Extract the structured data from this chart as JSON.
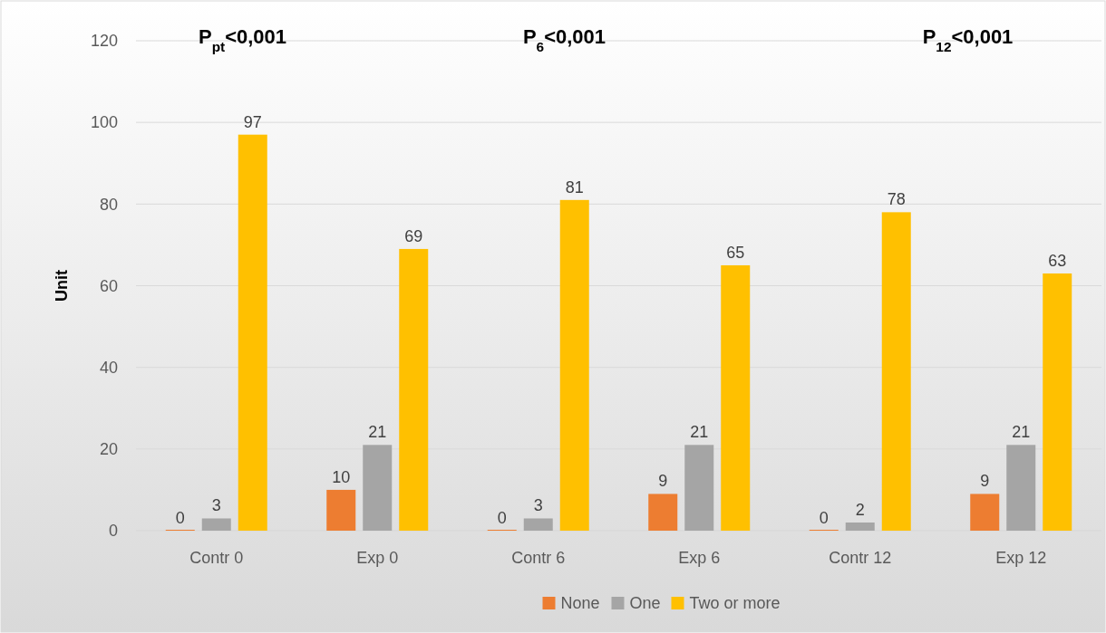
{
  "chart_data": {
    "type": "bar",
    "ylabel": "Unit",
    "categories": [
      "Contr 0",
      "Exp 0",
      "Contr 6",
      "Exp 6",
      "Contr 12",
      "Exp 12"
    ],
    "series": [
      {
        "name": "None",
        "color": "#ed7d31",
        "values": [
          0,
          10,
          0,
          9,
          0,
          9
        ]
      },
      {
        "name": "One",
        "color": "#a5a5a5",
        "values": [
          3,
          21,
          3,
          21,
          2,
          21
        ]
      },
      {
        "name": "Two or more",
        "color": "#ffc000",
        "values": [
          97,
          69,
          81,
          65,
          78,
          63
        ]
      }
    ],
    "ylim": [
      0,
      120
    ],
    "yticks": [
      0,
      20,
      40,
      60,
      80,
      100,
      120
    ],
    "grid": "y",
    "data_labels": true,
    "legend": "bottom",
    "annotations": [
      "P$_{pt}$<0,001",
      "P$_{6}$<0,001",
      "P$_{12}$<0,001"
    ]
  }
}
